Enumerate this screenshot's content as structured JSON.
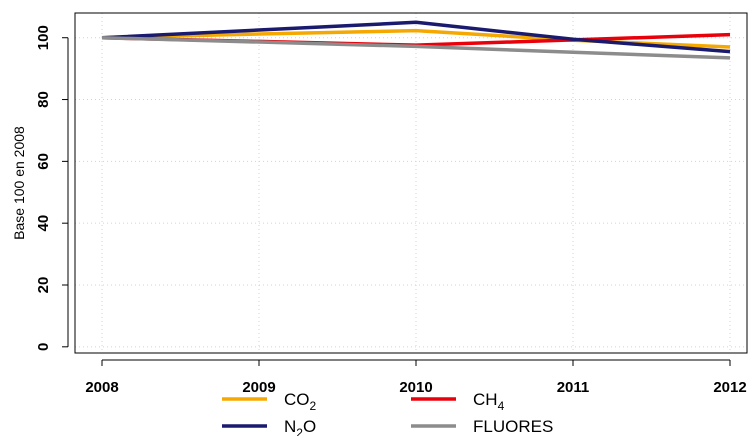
{
  "chart_data": {
    "type": "line",
    "ylabel": "Base 100 en 2008",
    "x": [
      "2008",
      "2009",
      "2010",
      "2011",
      "2012"
    ],
    "ylim": [
      -2,
      108
    ],
    "yticks": [
      0,
      20,
      40,
      60,
      80,
      100
    ],
    "grid": true,
    "legend_position": "bottom",
    "series": [
      {
        "name": "CO",
        "sub": "2",
        "color": "#f5a800",
        "values": [
          100,
          101.2,
          102.3,
          99.2,
          97.0
        ]
      },
      {
        "name": "CH",
        "sub": "4",
        "color": "#e8000b",
        "values": [
          100,
          98.8,
          97.6,
          99.3,
          101.0
        ]
      },
      {
        "name": "N",
        "sub": "2",
        "suffix": "O",
        "color": "#1a1a6e",
        "values": [
          100,
          102.5,
          105.0,
          99.5,
          95.5
        ]
      },
      {
        "name": "FLUORES",
        "color": "#8c8c8c",
        "values": [
          100,
          98.6,
          97.2,
          95.3,
          93.5
        ]
      }
    ]
  }
}
